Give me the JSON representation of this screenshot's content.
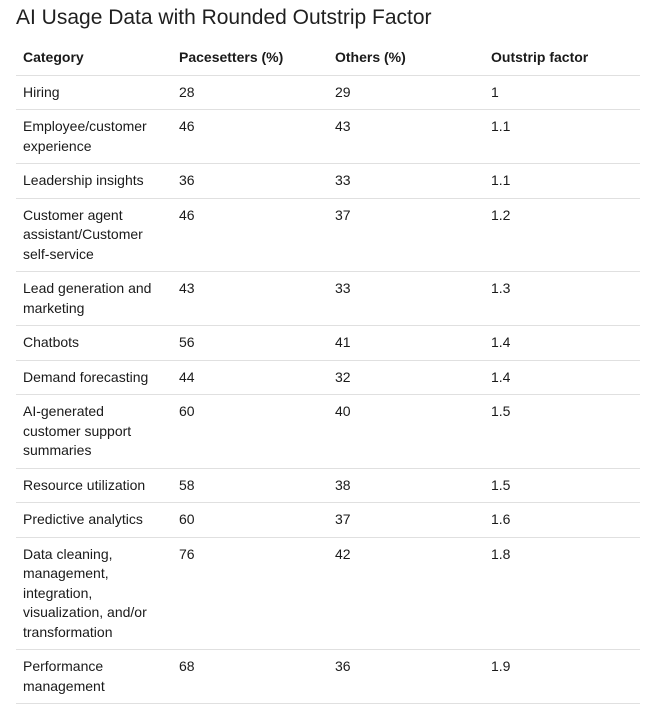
{
  "title": "AI Usage Data with Rounded Outstrip Factor",
  "table": {
    "headers": [
      "Category",
      "Pacesetters (%)",
      "Others (%)",
      "Outstrip factor"
    ],
    "rows": [
      [
        "Hiring",
        "28",
        "29",
        "1"
      ],
      [
        "Employee/customer experience",
        "46",
        "43",
        "1.1"
      ],
      [
        "Leadership insights",
        "36",
        "33",
        "1.1"
      ],
      [
        "Customer agent assistant/Customer self-service",
        "46",
        "37",
        "1.2"
      ],
      [
        "Lead generation and marketing",
        "43",
        "33",
        "1.3"
      ],
      [
        "Chatbots",
        "56",
        "41",
        "1.4"
      ],
      [
        "Demand forecasting",
        "44",
        "32",
        "1.4"
      ],
      [
        "AI-generated customer support summaries",
        "60",
        "40",
        "1.5"
      ],
      [
        "Resource utilization",
        "58",
        "38",
        "1.5"
      ],
      [
        "Predictive analytics",
        "60",
        "37",
        "1.6"
      ],
      [
        "Data cleaning, management, integration, visualization, and/or transformation",
        "76",
        "42",
        "1.8"
      ],
      [
        "Performance management",
        "68",
        "36",
        "1.9"
      ]
    ]
  }
}
